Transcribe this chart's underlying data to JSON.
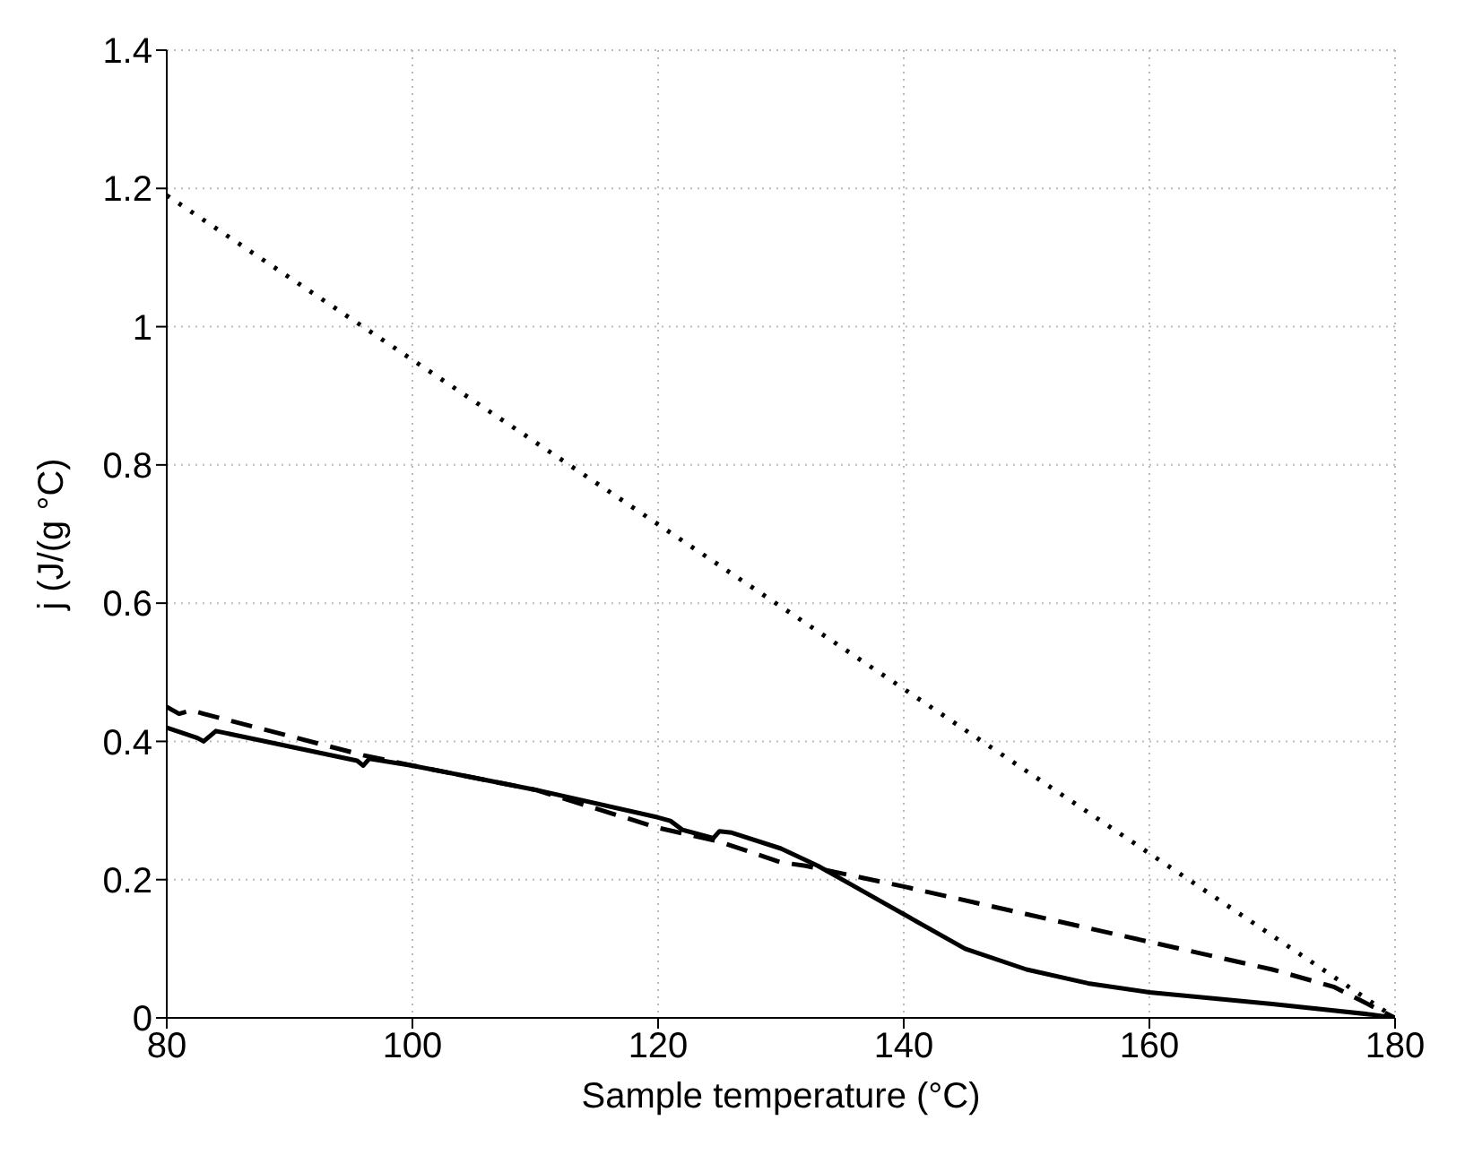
{
  "chart_data": {
    "type": "line",
    "xlabel": "Sample temperature (°C)",
    "ylabel": "j (J/(g °C)",
    "xlim": [
      80,
      180
    ],
    "xticks": [
      80,
      100,
      120,
      140,
      160,
      180
    ],
    "ylim": [
      0,
      1.4
    ],
    "yticks": [
      0,
      0.2,
      0.4,
      0.6,
      0.8,
      1,
      1.2,
      1.4
    ],
    "grid": true,
    "marker": "none",
    "series": [
      {
        "color": "#000000",
        "line_style": "solid",
        "x": [
          80,
          82.5,
          83,
          84,
          95.5,
          96,
          96.5,
          100,
          110,
          120,
          121,
          122,
          124.5,
          125,
          126,
          130,
          133,
          136,
          140,
          145,
          150,
          155,
          160,
          170,
          178,
          180
        ],
        "values": [
          0.42,
          0.405,
          0.4,
          0.415,
          0.372,
          0.365,
          0.375,
          0.365,
          0.33,
          0.29,
          0.285,
          0.272,
          0.26,
          0.27,
          0.268,
          0.245,
          0.22,
          0.19,
          0.15,
          0.1,
          0.07,
          0.05,
          0.037,
          0.02,
          0.005,
          0
        ]
      },
      {
        "color": "#000000",
        "line_style": "dashed",
        "x": [
          80,
          81,
          82,
          83,
          96,
          100,
          110,
          120,
          125,
          130,
          132,
          140,
          150,
          160,
          170,
          175,
          180
        ],
        "values": [
          0.45,
          0.44,
          0.445,
          0.44,
          0.38,
          0.365,
          0.33,
          0.275,
          0.255,
          0.225,
          0.22,
          0.19,
          0.15,
          0.11,
          0.07,
          0.045,
          0
        ]
      },
      {
        "color": "#000000",
        "line_style": "dotted",
        "x": [
          80,
          180
        ],
        "values": [
          1.19,
          0
        ]
      }
    ]
  }
}
